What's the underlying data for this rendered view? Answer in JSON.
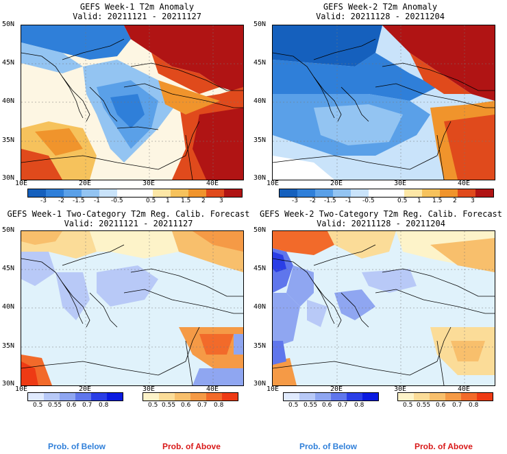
{
  "panels": [
    {
      "title": "GEFS Week-1 T2m Anomaly",
      "valid": "Valid: 20211121 - 20211127"
    },
    {
      "title": "GEFS Week-2 T2m Anomaly",
      "valid": "Valid: 20211128 - 20211204"
    },
    {
      "title": "GEFS Week-1 Two-Category T2m Reg. Calib. Forecast",
      "valid": "Valid: 20211121 - 20211127"
    },
    {
      "title": "GEFS Week-2 Two-Category T2m Reg. Calib. Forecast",
      "valid": "Valid: 20211128 - 20211204"
    }
  ],
  "axes": {
    "lat_labels": [
      "50N",
      "45N",
      "40N",
      "35N",
      "30N"
    ],
    "lon_labels": [
      "10E",
      "20E",
      "30E",
      "40E"
    ]
  },
  "anomaly_legend": {
    "labels": [
      "-3",
      "-2",
      "-1.5",
      "-1",
      "-0.5",
      "0.5",
      "1",
      "1.5",
      "2",
      "3"
    ],
    "colors": [
      "#1560bd",
      "#2f7fd9",
      "#5aa0e8",
      "#93c4f2",
      "#c9e3fa",
      "#ffffff",
      "#ffffff",
      "#fde7a6",
      "#f6c25c",
      "#f0942c",
      "#e04a1c",
      "#b01414"
    ]
  },
  "below_legend": {
    "labels": [
      "0.5",
      "0.55",
      "0.6",
      "0.7",
      "0.8"
    ],
    "colors": [
      "#e0eafd",
      "#b8c9f7",
      "#8fa6f1",
      "#5f76ec",
      "#2a3ee6",
      "#0a1ae0"
    ]
  },
  "above_legend": {
    "labels": [
      "0.5",
      "0.55",
      "0.6",
      "0.7",
      "0.8"
    ],
    "colors": [
      "#fdf3c9",
      "#fbdc98",
      "#f8bf6c",
      "#f59a46",
      "#f26a2a",
      "#ee3a14"
    ]
  },
  "footer": {
    "below": "Prob. of Below",
    "above": "Prob. of Above"
  }
}
